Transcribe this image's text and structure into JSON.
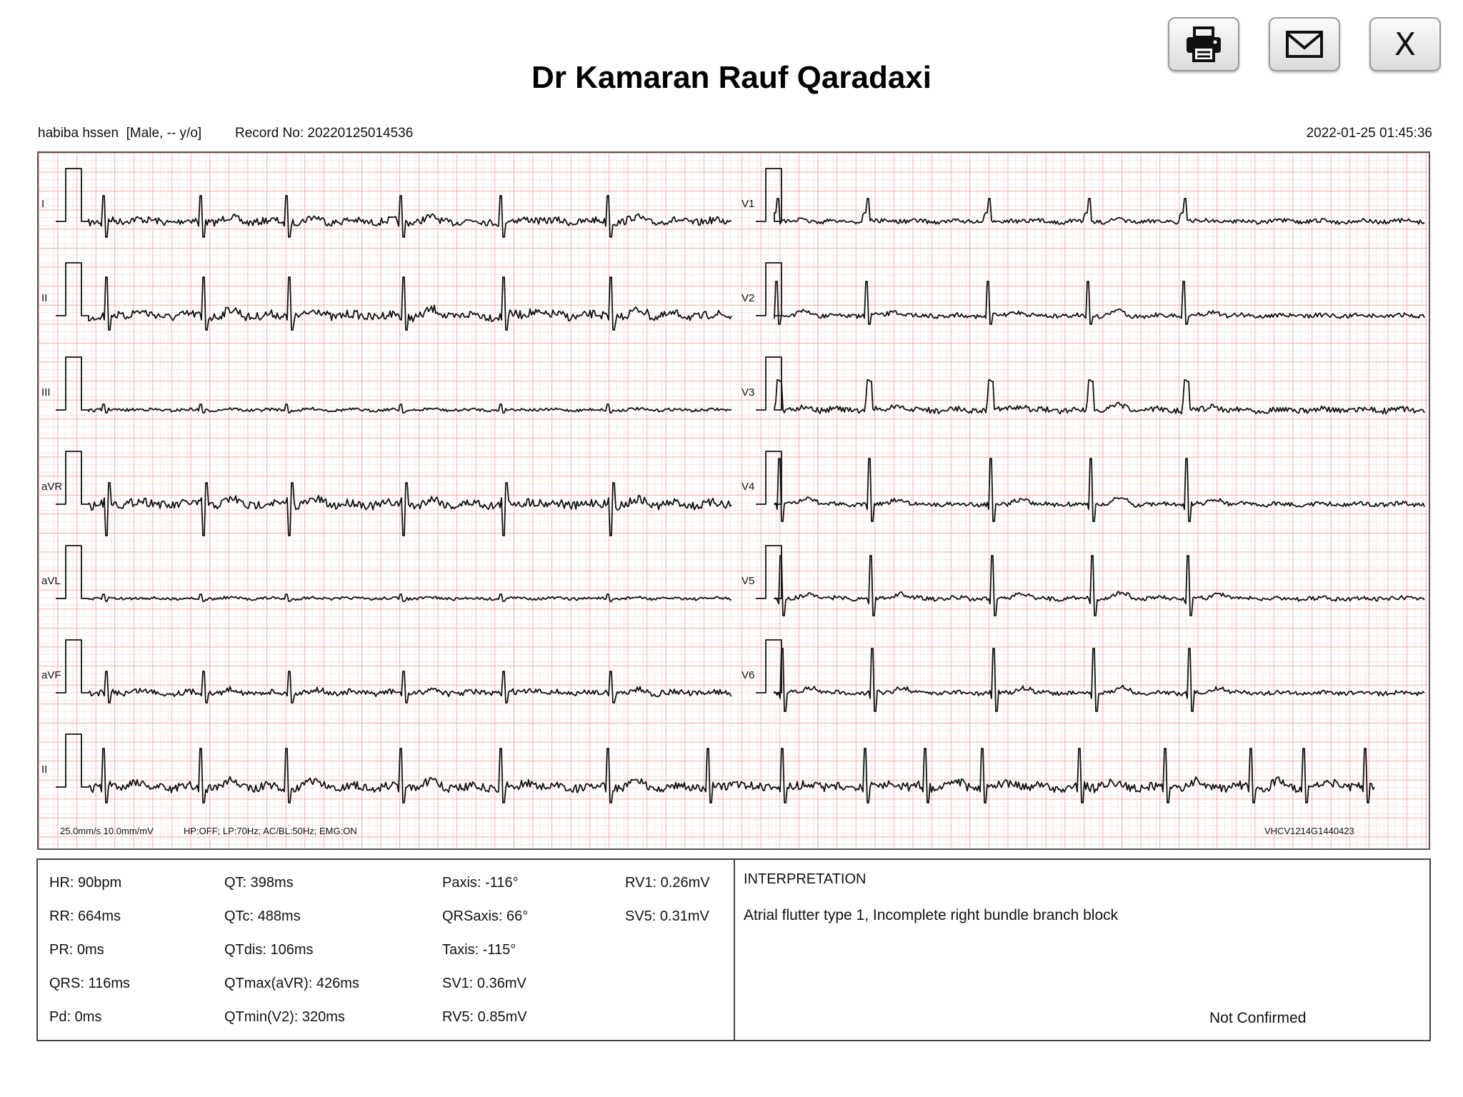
{
  "header": {
    "title": "Dr Kamaran Rauf Qaradaxi",
    "patient": "habiba hssen  [Male, -- y/o]",
    "record": "Record No: 20220125014536",
    "datetime": "2022-01-25 01:45:36",
    "close_label": "X"
  },
  "toolbar": {
    "icons": [
      "printer-icon",
      "mail-icon",
      "close-icon"
    ]
  },
  "ecg": {
    "leads_left": [
      "I",
      "II",
      "III",
      "aVR",
      "aVL",
      "aVF"
    ],
    "leads_right": [
      "V1",
      "V2",
      "V3",
      "V4",
      "V5",
      "V6"
    ],
    "rhythm_lead": "II",
    "speed_gain": "25.0mm/s  10.0mm/mV",
    "filters": "HP:OFF; LP:70Hz; AC/BL:50Hz; EMG:ON",
    "device": "VHCV1214G1440423",
    "grid_colors": {
      "minor": "#f7c8c8",
      "major": "#ee8c8c",
      "trace": "#111111"
    }
  },
  "params": {
    "col1": [
      "HR: 90bpm",
      "RR: 664ms",
      "PR: 0ms",
      "QRS: 116ms",
      "Pd: 0ms"
    ],
    "col2": [
      "QT: 398ms",
      "QTc: 488ms",
      "QTdis: 106ms",
      "QTmax(aVR): 426ms",
      "QTmin(V2): 320ms"
    ],
    "col3": [
      "Paxis: -116°",
      "QRSaxis: 66°",
      "Taxis: -115°",
      "SV1: 0.36mV",
      "RV5: 0.85mV"
    ],
    "col4": [
      "RV1: 0.26mV",
      "SV5: 0.31mV"
    ]
  },
  "interpretation": {
    "title": "INTERPRETATION",
    "text": "Atrial flutter type 1, Incomplete right bundle branch block",
    "status": "Not Confirmed"
  }
}
